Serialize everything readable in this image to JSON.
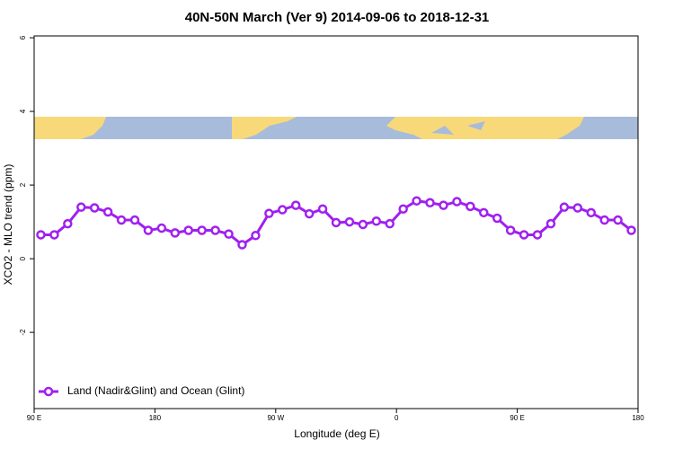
{
  "chart_data": {
    "type": "line",
    "title": "40N-50N March (Ver 9)   2014-09-06 to 2018-12-31",
    "x_label": "Longitude (deg E)",
    "y_label": "XCO2 - MLO trend (ppm)",
    "x": [
      95,
      105,
      115,
      125,
      135,
      145,
      155,
      165,
      175,
      185,
      195,
      205,
      215,
      225,
      235,
      245,
      255,
      265,
      275,
      285,
      295,
      305,
      315,
      325,
      335,
      345,
      355,
      365,
      375,
      385,
      395,
      405,
      415,
      425,
      435,
      445,
      455,
      465,
      475,
      485,
      495,
      505,
      515,
      525,
      535
    ],
    "series": [
      {
        "name": "Land (Nadir&Glint) and Ocean (Glint)",
        "color": "#a020f0",
        "values": [
          0.65,
          0.65,
          0.95,
          1.4,
          1.38,
          1.27,
          1.05,
          1.05,
          0.77,
          0.83,
          0.7,
          0.77,
          0.77,
          0.77,
          0.67,
          0.38,
          0.63,
          1.23,
          1.33,
          1.45,
          1.22,
          1.35,
          0.98,
          1.0,
          0.93,
          1.02,
          0.95,
          1.35,
          1.57,
          1.52,
          1.45,
          1.55,
          1.42,
          1.25,
          1.1,
          0.77,
          0.65,
          0.65,
          0.95,
          1.4,
          1.38,
          1.25,
          1.05,
          1.05,
          0.77
        ]
      }
    ],
    "xlim": [
      90,
      540
    ],
    "xticks": [
      {
        "value": 90,
        "label": "90 E"
      },
      {
        "value": 180,
        "label": "180"
      },
      {
        "value": 270,
        "label": "90 W"
      },
      {
        "value": 360,
        "label": "0"
      },
      {
        "value": 450,
        "label": "90 E"
      },
      {
        "value": 540,
        "label": "180"
      }
    ],
    "ylim": [
      -4.07,
      6.05
    ],
    "yticks": [
      6,
      4,
      2,
      0,
      -2
    ],
    "legend": "bottom-left"
  }
}
